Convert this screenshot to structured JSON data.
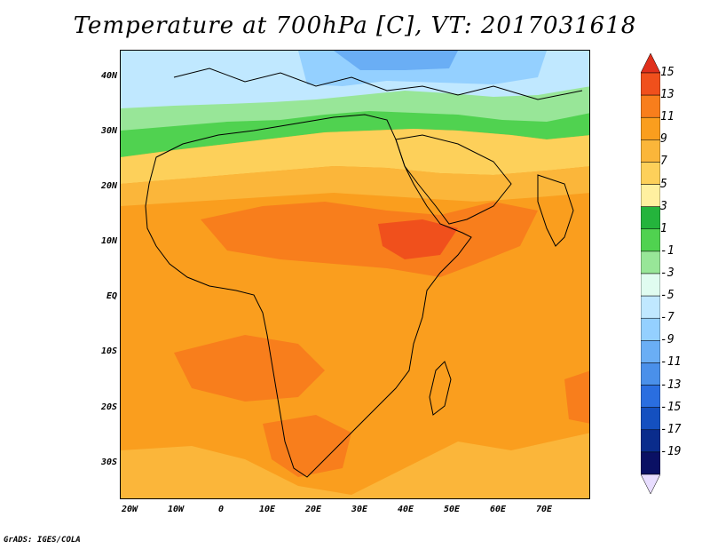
{
  "title": "Temperature at 700hPa [C], VT: 2017031618",
  "credit": "GrADS: IGES/COLA",
  "lat_axis": [
    "40N",
    "30N",
    "20N",
    "10N",
    "EQ",
    "10S",
    "20S",
    "30S"
  ],
  "lon_axis": [
    "20W",
    "10W",
    "0",
    "10E",
    "20E",
    "30E",
    "40E",
    "50E",
    "60E",
    "70E"
  ],
  "colorbar": {
    "labels": [
      "15",
      "13",
      "11",
      "9",
      "7",
      "5",
      "3",
      "1",
      "-1",
      "-3",
      "-5",
      "-7",
      "-9",
      "-11",
      "-13",
      "-15",
      "-17",
      "-19"
    ],
    "colors": [
      "#e0301c",
      "#f0501c",
      "#f87e1c",
      "#fa9e1e",
      "#fbb63a",
      "#fdd05a",
      "#fff0a0",
      "#24b43c",
      "#50d250",
      "#98e698",
      "#e0fcf0",
      "#c0e8ff",
      "#94d0ff",
      "#6aaef5",
      "#4a90ea",
      "#2a6ee0",
      "#1450c0",
      "#0a2c8c",
      "#0a1064",
      "#e8ddff"
    ]
  }
}
